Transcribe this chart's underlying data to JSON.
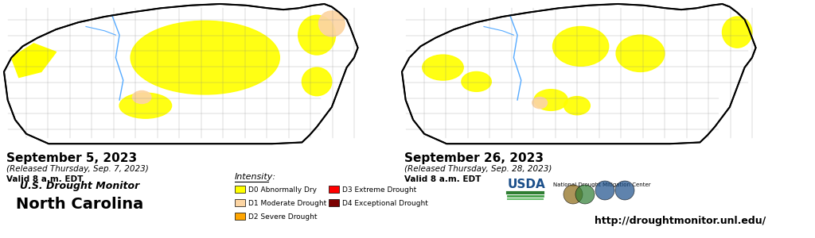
{
  "title_left": "September 5, 2023",
  "subtitle_left_1": "(Released Thursday, Sep. 7, 2023)",
  "subtitle_left_2": "Valid 8 a.m. EDT",
  "title_right": "September 26, 2023",
  "subtitle_right_1": "(Released Thursday, Sep. 28, 2023)",
  "subtitle_right_2": "Valid 8 a.m. EDT",
  "brand_line1": "U.S. Drought Monitor",
  "brand_line2": "North Carolina",
  "legend_title": "Intensity:",
  "legend_items": [
    {
      "label": "D0 Abnormally Dry",
      "color": "#FFFF00"
    },
    {
      "label": "D1 Moderate Drought",
      "color": "#FCD5A3"
    },
    {
      "label": "D2 Severe Drought",
      "color": "#FFA500"
    },
    {
      "label": "D3 Extreme Drought",
      "color": "#FF0000"
    },
    {
      "label": "D4 Exceptional Drought",
      "color": "#7B0000"
    }
  ],
  "url": "http://droughtmonitor.unl.edu/",
  "bg_color": "#FFFFFF"
}
